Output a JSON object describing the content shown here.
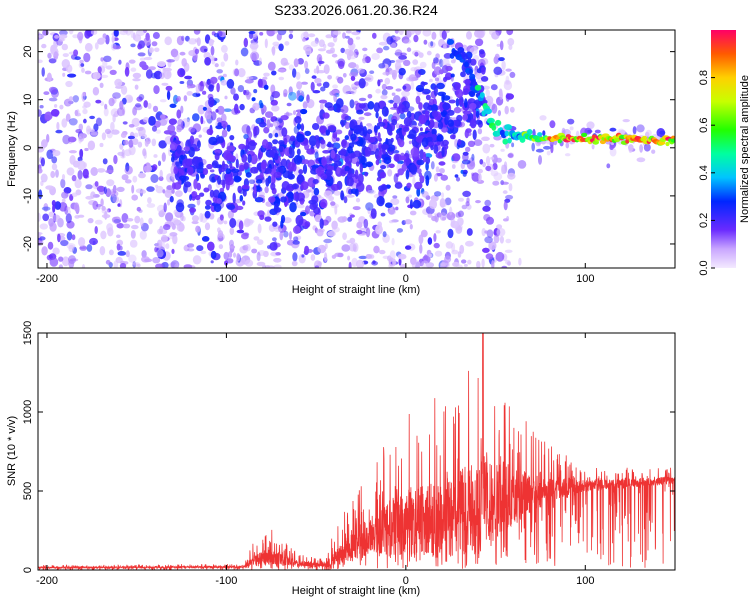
{
  "title": "S233.2026.061.20.36.R24",
  "chart_data": [
    {
      "type": "heatmap",
      "name": "spectrogram",
      "xlabel": "Height of straight line (km)",
      "ylabel": "Frequency (Hz)",
      "xlim": [
        -205,
        150
      ],
      "ylim": [
        -25,
        24.5
      ],
      "xticks": [
        -200,
        -100,
        0,
        100
      ],
      "yticks": [
        -20,
        -10,
        0,
        10,
        20
      ],
      "colorbar": {
        "label": "Normalized spectral amplitude",
        "range": [
          0.0,
          1.0
        ],
        "ticks": [
          0.0,
          0.2,
          0.4,
          0.6,
          0.8
        ],
        "tick_labels": [
          "0.0",
          "0.2",
          "0.4",
          "0.6",
          "0.8"
        ]
      },
      "ridge": {
        "description_points": [
          {
            "x": 30,
            "y": 20
          },
          {
            "x": 36,
            "y": 16
          },
          {
            "x": 42,
            "y": 10
          },
          {
            "x": 50,
            "y": 4
          },
          {
            "x": 60,
            "y": 2.5
          },
          {
            "x": 80,
            "y": 2
          },
          {
            "x": 100,
            "y": 2
          },
          {
            "x": 150,
            "y": 1.5
          }
        ],
        "peak_amplitude_range": [
          0.4,
          1.0
        ]
      },
      "scatter_amplitude_range": [
        0.0,
        0.3
      ]
    },
    {
      "type": "line",
      "name": "snr",
      "xlabel": "Height of straight line (km)",
      "ylabel": "SNR (10 * v/v)",
      "xlim": [
        -205,
        150
      ],
      "ylim": [
        0,
        1500
      ],
      "xticks": [
        -200,
        -100,
        0,
        100
      ],
      "yticks": [
        0,
        500,
        1000,
        1500
      ],
      "color": "#ee3333",
      "envelope": [
        {
          "x": -205,
          "base": 15,
          "amp": 15
        },
        {
          "x": -90,
          "base": 20,
          "amp": 20
        },
        {
          "x": -85,
          "base": 60,
          "amp": 120
        },
        {
          "x": -75,
          "base": 80,
          "amp": 180
        },
        {
          "x": -60,
          "base": 40,
          "amp": 60
        },
        {
          "x": -45,
          "base": 30,
          "amp": 40
        },
        {
          "x": -40,
          "base": 60,
          "amp": 200
        },
        {
          "x": -30,
          "base": 150,
          "amp": 300
        },
        {
          "x": -15,
          "base": 250,
          "amp": 500
        },
        {
          "x": 0,
          "base": 300,
          "amp": 700
        },
        {
          "x": 20,
          "base": 320,
          "amp": 800
        },
        {
          "x": 40,
          "base": 400,
          "amp": 1000
        },
        {
          "x": 55,
          "base": 450,
          "amp": 700
        },
        {
          "x": 75,
          "base": 500,
          "amp": 350
        },
        {
          "x": 100,
          "base": 530,
          "amp": 120
        },
        {
          "x": 150,
          "base": 570,
          "amp": 80
        }
      ],
      "annotations": {
        "peak_x": 43,
        "peak_y": 1500
      }
    }
  ]
}
